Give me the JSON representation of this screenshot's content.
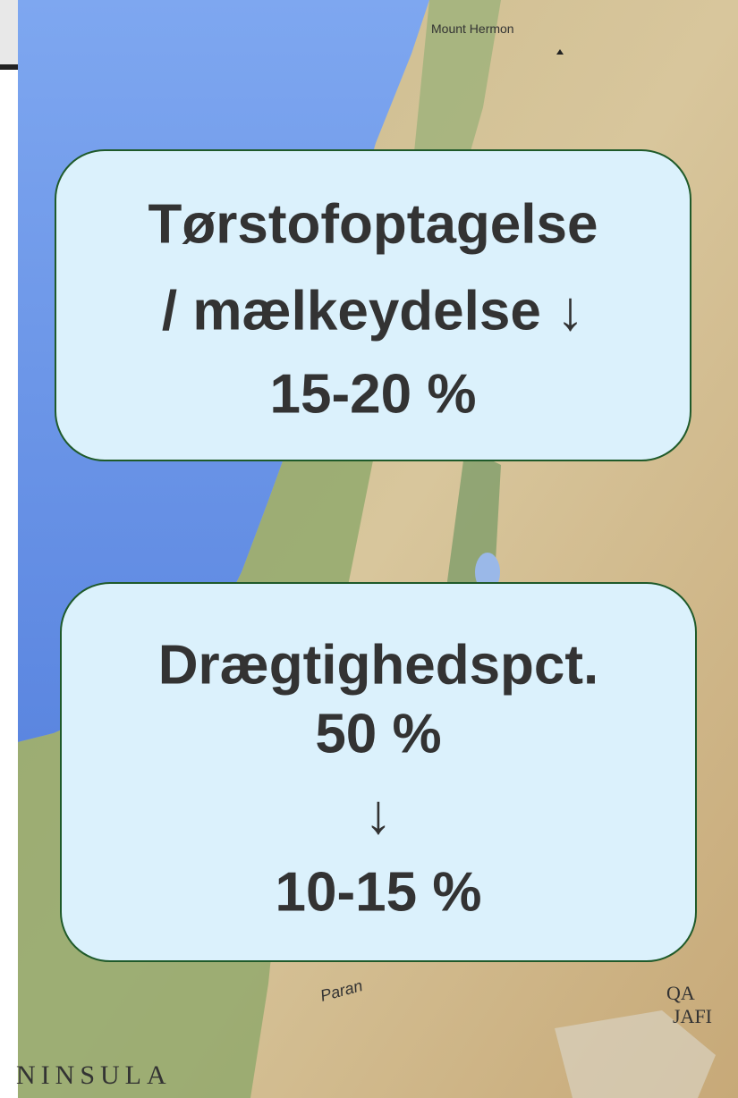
{
  "map_labels": [
    "Mount Hermon",
    "Paran",
    "NINSULA",
    "QA",
    "JAFI"
  ],
  "boxes": [
    {
      "lines": [
        "Tørstofoptagelse",
        "/ mælkeydelse ↓",
        "15-20 %"
      ]
    },
    {
      "lines": [
        "Drægtighedspct.",
        "50 %",
        "↓",
        "10-15 %"
      ]
    }
  ]
}
